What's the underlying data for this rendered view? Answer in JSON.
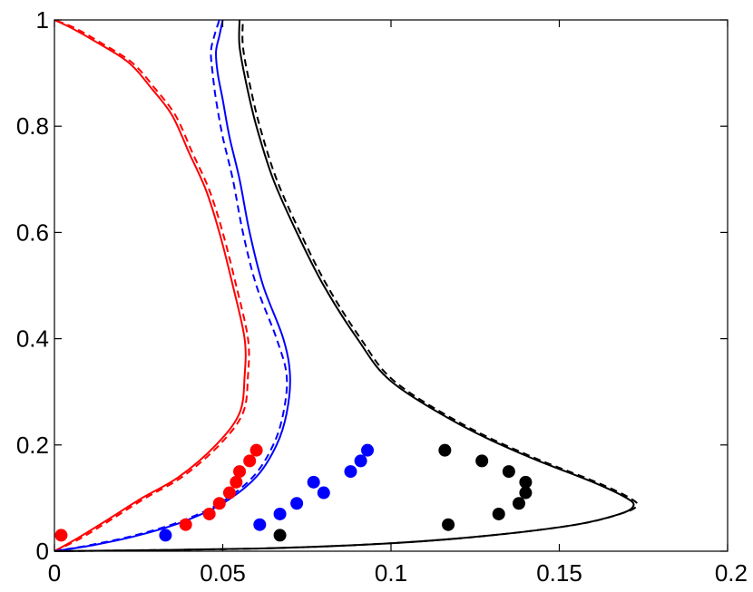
{
  "chart_data": {
    "type": "scatter",
    "title": "",
    "xlabel": "",
    "ylabel": "",
    "xlim": [
      0,
      0.2
    ],
    "ylim": [
      0,
      1
    ],
    "grid": false,
    "x_ticks": [
      0,
      0.05,
      0.1,
      0.15,
      0.2
    ],
    "x_tick_labels": [
      "0",
      "0.05",
      "0.1",
      "0.15",
      "0.2"
    ],
    "y_ticks": [
      0,
      0.2,
      0.4,
      0.6,
      0.8,
      1
    ],
    "y_tick_labels": [
      "0",
      "0.2",
      "0.4",
      "0.6",
      "0.8",
      "1"
    ],
    "lines": [
      {
        "color": "#ff0000",
        "style": "solid",
        "x": [
          0,
          0.007,
          0.016,
          0.026,
          0.037,
          0.048,
          0.055,
          0.0565,
          0.0565,
          0.053,
          0.049,
          0.045,
          0.04,
          0.035,
          0.029,
          0.022,
          0.012,
          0.005,
          0
        ],
        "y": [
          0,
          0.025,
          0.06,
          0.1,
          0.14,
          0.2,
          0.26,
          0.33,
          0.4,
          0.5,
          0.6,
          0.68,
          0.75,
          0.82,
          0.87,
          0.92,
          0.96,
          0.985,
          1
        ]
      },
      {
        "color": "#ff0000",
        "style": "dashed",
        "x": [
          0,
          0.008,
          0.017,
          0.027,
          0.038,
          0.049,
          0.056,
          0.0575,
          0.0575,
          0.054,
          0.05,
          0.046,
          0.041,
          0.036,
          0.03,
          0.023,
          0.013,
          0.006,
          0
        ],
        "y": [
          0,
          0.025,
          0.06,
          0.1,
          0.14,
          0.2,
          0.26,
          0.33,
          0.4,
          0.5,
          0.6,
          0.68,
          0.75,
          0.82,
          0.87,
          0.92,
          0.96,
          0.985,
          1
        ]
      },
      {
        "color": "#0000ff",
        "style": "solid",
        "x": [
          0,
          0.012,
          0.025,
          0.038,
          0.05,
          0.06,
          0.066,
          0.069,
          0.07,
          0.068,
          0.062,
          0.058,
          0.055,
          0.052,
          0.05,
          0.0485,
          0.048,
          0.049,
          0.05
        ],
        "y": [
          0,
          0.012,
          0.03,
          0.055,
          0.09,
          0.14,
          0.2,
          0.26,
          0.33,
          0.4,
          0.5,
          0.6,
          0.7,
          0.78,
          0.85,
          0.9,
          0.94,
          0.97,
          1
        ]
      },
      {
        "color": "#0000ff",
        "style": "dashed",
        "x": [
          0,
          0.011,
          0.024,
          0.037,
          0.049,
          0.059,
          0.065,
          0.068,
          0.069,
          0.066,
          0.06,
          0.056,
          0.053,
          0.05,
          0.048,
          0.047,
          0.0465,
          0.0475,
          0.049
        ],
        "y": [
          0,
          0.012,
          0.03,
          0.055,
          0.09,
          0.14,
          0.2,
          0.26,
          0.33,
          0.4,
          0.5,
          0.6,
          0.7,
          0.78,
          0.85,
          0.9,
          0.94,
          0.97,
          1
        ]
      },
      {
        "color": "#000000",
        "style": "solid",
        "x": [
          0,
          0.06,
          0.1,
          0.13,
          0.155,
          0.168,
          0.172,
          0.17,
          0.16,
          0.14,
          0.12,
          0.1,
          0.09,
          0.08,
          0.072,
          0.065,
          0.06,
          0.057,
          0.055,
          0.055
        ],
        "y": [
          0,
          0.005,
          0.015,
          0.03,
          0.05,
          0.07,
          0.085,
          0.1,
          0.13,
          0.18,
          0.24,
          0.32,
          0.4,
          0.5,
          0.6,
          0.7,
          0.8,
          0.88,
          0.95,
          1
        ]
      },
      {
        "color": "#000000",
        "style": "dashed",
        "x": [
          0,
          0.06,
          0.1,
          0.13,
          0.155,
          0.168,
          0.173,
          0.171,
          0.161,
          0.141,
          0.121,
          0.101,
          0.091,
          0.081,
          0.073,
          0.066,
          0.061,
          0.058,
          0.056,
          0.056
        ],
        "y": [
          0,
          0.005,
          0.015,
          0.03,
          0.05,
          0.07,
          0.085,
          0.1,
          0.13,
          0.18,
          0.24,
          0.32,
          0.4,
          0.5,
          0.6,
          0.7,
          0.8,
          0.88,
          0.95,
          1
        ]
      }
    ],
    "points": [
      {
        "color": "#ff0000",
        "x": [
          0.002,
          0.039,
          0.046,
          0.049,
          0.052,
          0.054,
          0.055,
          0.058,
          0.06
        ],
        "y": [
          0.03,
          0.05,
          0.07,
          0.09,
          0.11,
          0.13,
          0.15,
          0.17,
          0.19
        ]
      },
      {
        "color": "#0000ff",
        "x": [
          0.033,
          0.061,
          0.067,
          0.072,
          0.077,
          0.08,
          0.088,
          0.091,
          0.093
        ],
        "y": [
          0.03,
          0.05,
          0.07,
          0.09,
          0.13,
          0.11,
          0.15,
          0.17,
          0.19
        ]
      },
      {
        "color": "#000000",
        "x": [
          0.067,
          0.117,
          0.132,
          0.138,
          0.14,
          0.14,
          0.135,
          0.127,
          0.116
        ],
        "y": [
          0.03,
          0.05,
          0.07,
          0.09,
          0.11,
          0.13,
          0.15,
          0.17,
          0.19
        ]
      }
    ]
  }
}
